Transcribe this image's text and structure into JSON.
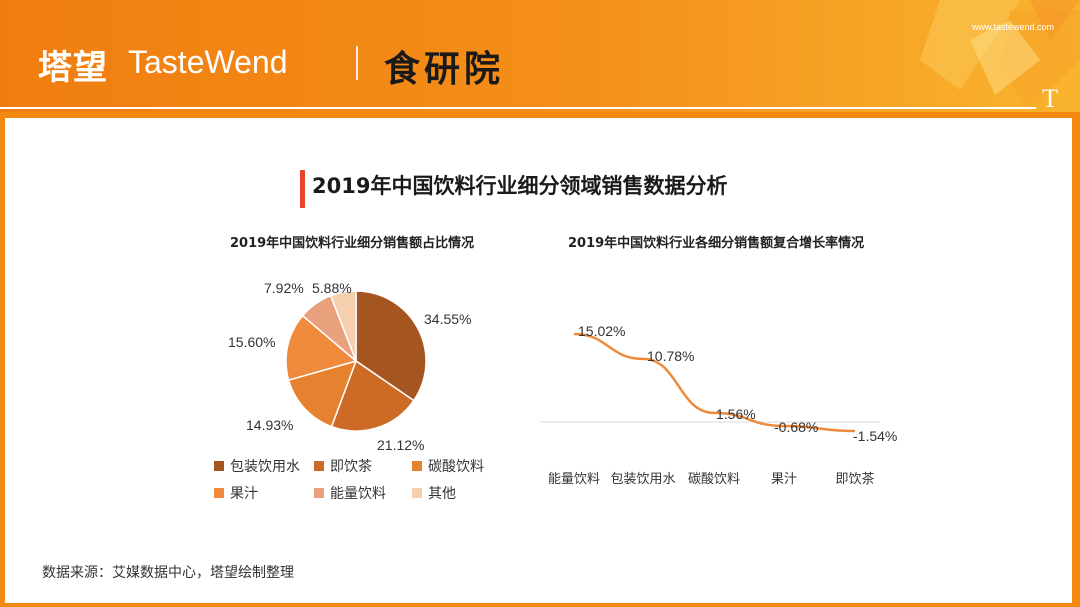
{
  "header": {
    "logo_cn": "塔望",
    "logo_en": "TasteWend",
    "brand2": "食研院",
    "url": "www.tastewend.com",
    "corner_mark": "T",
    "accent_color": "#f28a12"
  },
  "title": "2019年中国饮料行业细分领域销售数据分析",
  "source": "数据来源：艾媒数据中心，塔望绘制整理",
  "chart_data": [
    {
      "type": "pie",
      "title": "2019年中国饮料行业细分销售额占比情况",
      "categories": [
        "包装饮用水",
        "即饮茶",
        "碳酸饮料",
        "果汁",
        "能量饮料",
        "其他"
      ],
      "values": [
        34.55,
        21.12,
        14.93,
        15.6,
        7.92,
        5.88
      ],
      "labels": [
        "34.55%",
        "21.12%",
        "14.93%",
        "15.60%",
        "7.92%",
        "5.88%"
      ],
      "colors": [
        "#a55520",
        "#cc6a26",
        "#e5812f",
        "#f08a3c",
        "#e9a07d",
        "#f6cfae"
      ],
      "legend": "bottom"
    },
    {
      "type": "line",
      "title": "2019年中国饮料行业各细分销售额复合增长率情况",
      "categories": [
        "能量饮料",
        "包装饮用水",
        "碳酸饮料",
        "果汁",
        "即饮茶"
      ],
      "values": [
        15.02,
        10.78,
        1.56,
        -0.68,
        -1.54
      ],
      "labels": [
        "15.02%",
        "10.78%",
        "1.56%",
        "-0.68%",
        "-1.54%"
      ],
      "color": "#ee8a3a",
      "grid": false
    }
  ]
}
